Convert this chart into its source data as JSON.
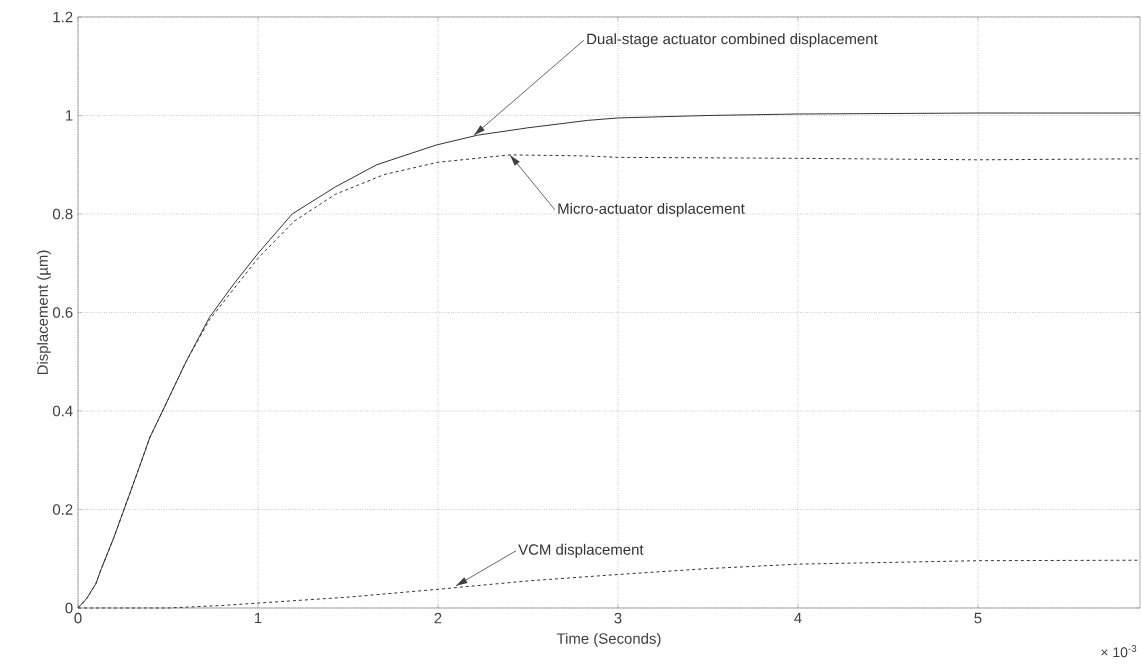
{
  "chart_data": {
    "type": "line",
    "xlabel": "Time (Seconds)",
    "ylabel": "Displacement (µm)",
    "xlim": [
      0,
      5.9
    ],
    "ylim": [
      0,
      1.2
    ],
    "xticks": [
      0,
      1,
      2,
      3,
      4,
      5
    ],
    "yticks": [
      0,
      0.2,
      0.4,
      0.6,
      0.8,
      1,
      1.2
    ],
    "grid": true,
    "series": [
      {
        "color": "#333333",
        "line_style": "solid",
        "x": [
          0,
          0.05,
          0.1,
          0.13,
          0.2,
          0.33,
          0.4,
          0.47,
          0.6,
          0.73,
          0.87,
          1.0,
          1.19,
          1.43,
          1.66,
          1.99,
          2.22,
          2.5,
          2.83,
          3.0,
          3.5,
          4.0,
          5.0,
          5.9
        ],
        "values": [
          0,
          0.02,
          0.05,
          0.08,
          0.144,
          0.275,
          0.347,
          0.4,
          0.5,
          0.59,
          0.66,
          0.72,
          0.8,
          0.855,
          0.9,
          0.94,
          0.96,
          0.975,
          0.99,
          0.995,
          1.0,
          1.003,
          1.005,
          1.005
        ]
      },
      {
        "color": "#333333",
        "line_style": "dashed",
        "x": [
          0,
          0.05,
          0.1,
          0.13,
          0.2,
          0.33,
          0.4,
          0.47,
          0.6,
          0.73,
          0.87,
          1.0,
          1.2,
          1.43,
          1.7,
          2.0,
          2.4,
          2.8,
          3.0,
          4.0,
          5.0,
          5.9
        ],
        "values": [
          0,
          0.02,
          0.05,
          0.08,
          0.144,
          0.275,
          0.347,
          0.4,
          0.5,
          0.585,
          0.65,
          0.71,
          0.785,
          0.84,
          0.88,
          0.905,
          0.92,
          0.918,
          0.915,
          0.913,
          0.91,
          0.912
        ]
      },
      {
        "color": "#333333",
        "line_style": "dashed",
        "x": [
          0,
          0.5,
          0.8,
          1.0,
          1.5,
          2.0,
          2.5,
          3.0,
          3.5,
          4.0,
          5.0,
          5.9
        ],
        "values": [
          0,
          0,
          0.005,
          0.01,
          0.022,
          0.038,
          0.055,
          0.068,
          0.08,
          0.089,
          0.096,
          0.097
        ]
      }
    ],
    "annotations": [
      {
        "text": "Dual-stage actuator combined displacement",
        "x": 2.2,
        "y": 0.96
      },
      {
        "text": "Micro-actuator displacement",
        "x": 2.4,
        "y": 0.92
      },
      {
        "text": "VCM displacement",
        "x": 2.1,
        "y": 0.045
      },
      "× 10$^{-3}$"
    ]
  }
}
